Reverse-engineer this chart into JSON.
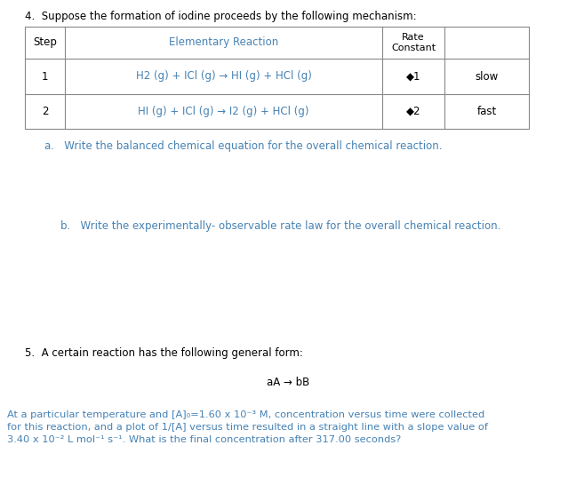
{
  "background_color": "#ffffff",
  "title_q4": "4.  Suppose the formation of iodine proceeds by the following mechanism:",
  "part_a": "a.   Write the balanced chemical equation for the overall chemical reaction.",
  "part_b": "b.   Write the experimentally- observable rate law for the overall chemical reaction.",
  "title_q5": "5.  A certain reaction has the following general form:",
  "general_form": "aA → bB",
  "para_line1": "At a particular temperature and [A]₀=1.60 x 10⁻³ M, concentration versus time were collected",
  "para_line2": "for this reaction, and a plot of 1/[A] versus time resulted in a straight line with a slope value of",
  "para_line3": "3.40 x 10⁻² L mol⁻¹ s⁻¹. What is the final concentration after 317.00 seconds?",
  "row1_reaction": "H2 (g) + ICl (g) → HI (g) + HCl (g)",
  "row2_reaction": "HI (g) + ICl (g) → I2 (g) + HCl (g)",
  "row1_rate": "◆1",
  "row2_rate": "◆2",
  "row1_speed": "slow",
  "row2_speed": "fast",
  "teal_color": "#4682B4",
  "dark_teal": "#2E6B8A",
  "text_color": "#000000",
  "gray_color": "#666666",
  "table_border_color": "#888888",
  "fs": 8.5,
  "fs_title": 8.5,
  "fs_para": 8.2
}
